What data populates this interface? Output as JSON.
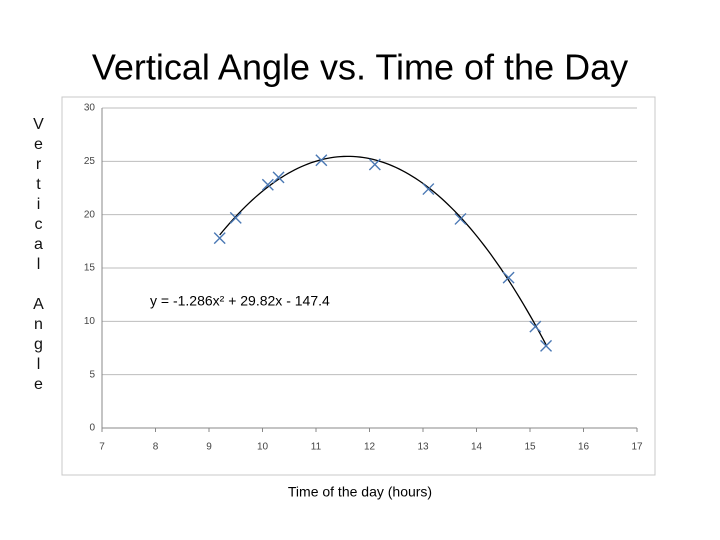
{
  "chart_data": {
    "type": "scatter",
    "title": "Vertical Angle vs. Time of the Day",
    "x_label": "Time of the day (hours)",
    "y_label": "Vertical Angle",
    "series": [
      {
        "color": "#4a78b4",
        "x": [
          9.2,
          9.5,
          10.1,
          10.3,
          11.1,
          12.1,
          13.1,
          13.7,
          14.6,
          15.1,
          15.3
        ],
        "values": [
          17.8,
          19.7,
          22.8,
          23.5,
          25.1,
          24.7,
          22.4,
          19.6,
          14.1,
          9.5,
          7.7
        ]
      }
    ],
    "trendline": {
      "type": "polynomial",
      "coefficients": [
        -1.286,
        29.82,
        -147.4
      ],
      "color": "#000000",
      "label": "y = -1.286x² + 29.82x - 147.4"
    },
    "xlim": [
      7,
      17
    ],
    "xticks": [
      7,
      8,
      9,
      10,
      11,
      12,
      13,
      14,
      15,
      16,
      17
    ],
    "ylim": [
      0,
      30
    ],
    "yticks": [
      0,
      5,
      10,
      15,
      20,
      25,
      30
    ],
    "grid": true
  }
}
